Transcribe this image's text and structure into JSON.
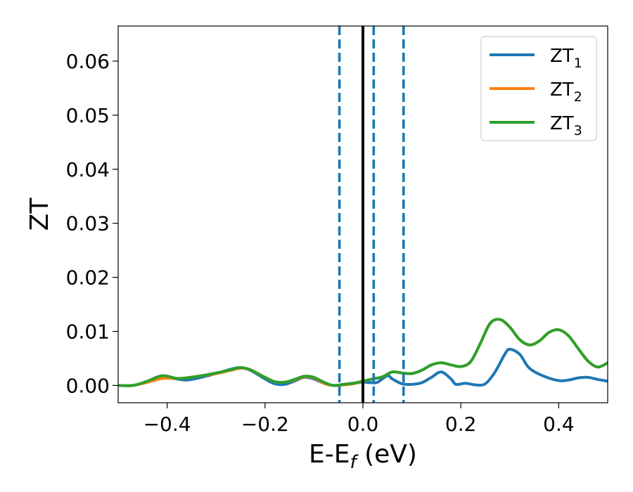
{
  "chart_data": {
    "type": "line",
    "xlabel": "E-E",
    "xlabel_sub": "f",
    "xlabel_unit": " (eV)",
    "ylabel": "ZT",
    "xlim": [
      -0.5,
      0.5
    ],
    "ylim": [
      -0.0032,
      0.0665
    ],
    "xticks": [
      {
        "v": -0.4,
        "label": "−0.4"
      },
      {
        "v": -0.2,
        "label": "−0.2"
      },
      {
        "v": 0.0,
        "label": "0.0"
      },
      {
        "v": 0.2,
        "label": "0.2"
      },
      {
        "v": 0.4,
        "label": "0.4"
      }
    ],
    "yticks": [
      {
        "v": 0.0,
        "label": "0.00"
      },
      {
        "v": 0.01,
        "label": "0.01"
      },
      {
        "v": 0.02,
        "label": "0.02"
      },
      {
        "v": 0.03,
        "label": "0.03"
      },
      {
        "v": 0.04,
        "label": "0.04"
      },
      {
        "v": 0.05,
        "label": "0.05"
      },
      {
        "v": 0.06,
        "label": "0.06"
      }
    ],
    "vlines": [
      {
        "x": 0.0,
        "style": "solid",
        "color": "#000000"
      },
      {
        "x": -0.048,
        "style": "dashed",
        "color": "#1f77b4"
      },
      {
        "x": 0.022,
        "style": "dashed",
        "color": "#1f77b4"
      },
      {
        "x": 0.083,
        "style": "dashed",
        "color": "#1f77b4"
      }
    ],
    "legend": {
      "placement": "top-right"
    },
    "series": [
      {
        "name": "ZT",
        "sub": "1",
        "color": "#1f77b4",
        "points": [
          [
            -0.5,
            0.0
          ],
          [
            -0.47,
            0.0
          ],
          [
            -0.44,
            0.0007
          ],
          [
            -0.41,
            0.0015
          ],
          [
            -0.38,
            0.0012
          ],
          [
            -0.36,
            0.001
          ],
          [
            -0.33,
            0.0015
          ],
          [
            -0.3,
            0.0022
          ],
          [
            -0.27,
            0.003
          ],
          [
            -0.25,
            0.0033
          ],
          [
            -0.23,
            0.0028
          ],
          [
            -0.2,
            0.0012
          ],
          [
            -0.18,
            0.0003
          ],
          [
            -0.16,
            0.0002
          ],
          [
            -0.14,
            0.0008
          ],
          [
            -0.12,
            0.0015
          ],
          [
            -0.1,
            0.0012
          ],
          [
            -0.08,
            0.0004
          ],
          [
            -0.06,
            0.0
          ],
          [
            -0.04,
            0.0002
          ],
          [
            -0.02,
            0.0004
          ],
          [
            0.0,
            0.0006
          ],
          [
            0.02,
            0.0005
          ],
          [
            0.03,
            0.0006
          ],
          [
            0.05,
            0.0018
          ],
          [
            0.06,
            0.0012
          ],
          [
            0.08,
            0.0003
          ],
          [
            0.1,
            0.0002
          ],
          [
            0.12,
            0.0005
          ],
          [
            0.14,
            0.0015
          ],
          [
            0.16,
            0.0025
          ],
          [
            0.18,
            0.0012
          ],
          [
            0.19,
            0.0002
          ],
          [
            0.21,
            0.0004
          ],
          [
            0.23,
            0.0001
          ],
          [
            0.25,
            0.0003
          ],
          [
            0.27,
            0.0025
          ],
          [
            0.29,
            0.0058
          ],
          [
            0.3,
            0.0067
          ],
          [
            0.32,
            0.0058
          ],
          [
            0.34,
            0.0032
          ],
          [
            0.37,
            0.0017
          ],
          [
            0.4,
            0.0009
          ],
          [
            0.42,
            0.001
          ],
          [
            0.44,
            0.0014
          ],
          [
            0.46,
            0.0015
          ],
          [
            0.48,
            0.0011
          ],
          [
            0.5,
            0.0008
          ]
        ]
      },
      {
        "name": "ZT",
        "sub": "2",
        "color": "#ff7f0e",
        "points": [
          [
            -0.5,
            0.0
          ],
          [
            -0.47,
            0.0
          ],
          [
            -0.44,
            0.0006
          ],
          [
            -0.41,
            0.0013
          ],
          [
            -0.38,
            0.0013
          ],
          [
            -0.36,
            0.0014
          ],
          [
            -0.33,
            0.0018
          ],
          [
            -0.3,
            0.0022
          ],
          [
            -0.27,
            0.0028
          ],
          [
            -0.25,
            0.0032
          ],
          [
            -0.23,
            0.0029
          ],
          [
            -0.2,
            0.0015
          ],
          [
            -0.18,
            0.0007
          ],
          [
            -0.16,
            0.0006
          ],
          [
            -0.14,
            0.001
          ],
          [
            -0.12,
            0.0016
          ],
          [
            -0.1,
            0.0014
          ],
          [
            -0.08,
            0.0004
          ],
          [
            -0.06,
            0.0
          ],
          [
            -0.04,
            0.0001
          ],
          [
            -0.02,
            0.0003
          ],
          [
            0.0,
            0.0008
          ],
          [
            0.02,
            0.0012
          ],
          [
            0.04,
            0.0016
          ],
          [
            0.06,
            0.0025
          ],
          [
            0.08,
            0.0023
          ],
          [
            0.1,
            0.0022
          ],
          [
            0.12,
            0.0028
          ],
          [
            0.14,
            0.0038
          ],
          [
            0.16,
            0.0042
          ],
          [
            0.18,
            0.0038
          ],
          [
            0.2,
            0.0035
          ],
          [
            0.22,
            0.0044
          ],
          [
            0.24,
            0.0078
          ],
          [
            0.26,
            0.0115
          ],
          [
            0.28,
            0.0122
          ],
          [
            0.3,
            0.0108
          ],
          [
            0.32,
            0.0085
          ],
          [
            0.34,
            0.0075
          ],
          [
            0.36,
            0.0082
          ],
          [
            0.38,
            0.0098
          ],
          [
            0.4,
            0.0103
          ],
          [
            0.42,
            0.0092
          ],
          [
            0.44,
            0.0068
          ],
          [
            0.46,
            0.0045
          ],
          [
            0.48,
            0.0034
          ],
          [
            0.5,
            0.0042
          ]
        ]
      },
      {
        "name": "ZT",
        "sub": "3",
        "color": "#2ca02c",
        "points": [
          [
            -0.5,
            0.0
          ],
          [
            -0.47,
            0.0
          ],
          [
            -0.44,
            0.0008
          ],
          [
            -0.41,
            0.0018
          ],
          [
            -0.38,
            0.0013
          ],
          [
            -0.36,
            0.0014
          ],
          [
            -0.33,
            0.0018
          ],
          [
            -0.3,
            0.0023
          ],
          [
            -0.27,
            0.0029
          ],
          [
            -0.25,
            0.0033
          ],
          [
            -0.23,
            0.0029
          ],
          [
            -0.2,
            0.0015
          ],
          [
            -0.18,
            0.0007
          ],
          [
            -0.16,
            0.0006
          ],
          [
            -0.14,
            0.0011
          ],
          [
            -0.12,
            0.0017
          ],
          [
            -0.1,
            0.0015
          ],
          [
            -0.08,
            0.0006
          ],
          [
            -0.06,
            0.0
          ],
          [
            -0.04,
            0.0002
          ],
          [
            -0.02,
            0.0004
          ],
          [
            0.0,
            0.0008
          ],
          [
            0.02,
            0.0012
          ],
          [
            0.04,
            0.0016
          ],
          [
            0.06,
            0.0025
          ],
          [
            0.08,
            0.0023
          ],
          [
            0.1,
            0.0022
          ],
          [
            0.12,
            0.0028
          ],
          [
            0.14,
            0.0038
          ],
          [
            0.16,
            0.0042
          ],
          [
            0.18,
            0.0038
          ],
          [
            0.2,
            0.0035
          ],
          [
            0.22,
            0.0044
          ],
          [
            0.24,
            0.0078
          ],
          [
            0.26,
            0.0115
          ],
          [
            0.28,
            0.0122
          ],
          [
            0.3,
            0.0108
          ],
          [
            0.32,
            0.0085
          ],
          [
            0.34,
            0.0075
          ],
          [
            0.36,
            0.0082
          ],
          [
            0.38,
            0.0098
          ],
          [
            0.4,
            0.0103
          ],
          [
            0.42,
            0.0092
          ],
          [
            0.44,
            0.0068
          ],
          [
            0.46,
            0.0045
          ],
          [
            0.48,
            0.0034
          ],
          [
            0.5,
            0.0042
          ]
        ]
      }
    ]
  }
}
